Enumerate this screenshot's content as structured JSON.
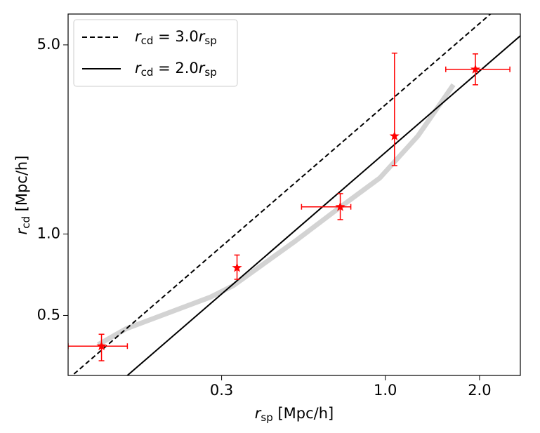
{
  "chart_data": {
    "type": "scatter",
    "xlabel": "rsp [Mpc/h]",
    "ylabel": "rcd [Mpc/h]",
    "xscale": "log",
    "yscale": "log",
    "xlim": [
      0.097,
      2.7
    ],
    "ylim": [
      0.3,
      6.5
    ],
    "xticks": [
      0.3,
      {
        "value": 1,
        "label": "1.0"
      },
      {
        "value": 2,
        "label": "2.0"
      }
    ],
    "yticks": [
      0.5,
      {
        "value": 1,
        "label": "1.0"
      },
      {
        "value": 5,
        "label": "5.0"
      }
    ],
    "legend": "upper left",
    "series": [
      {
        "name": "rcd = 3.0rsp",
        "factor": 3.0,
        "style": "dashed",
        "color": "#000000"
      },
      {
        "name": "rcd = 2.0rsp",
        "factor": 2.0,
        "style": "solid",
        "color": "#000000"
      }
    ],
    "points": {
      "color": "#ff0000",
      "x": [
        0.124,
        0.336,
        0.718,
        1.07,
        1.94
      ],
      "y": [
        0.385,
        0.75,
        1.26,
        2.3,
        4.06
      ],
      "x_lower": [
        0.097,
        0.336,
        0.54,
        1.07,
        1.56
      ],
      "x_upper": [
        0.15,
        0.336,
        0.776,
        1.07,
        2.5
      ],
      "y_lower": [
        0.34,
        0.68,
        1.13,
        1.79,
        3.56
      ],
      "y_upper": [
        0.426,
        0.836,
        1.41,
        4.66,
        4.63
      ]
    },
    "curve": {
      "color": "#d3d3d3",
      "x": [
        0.121,
        0.149,
        0.277,
        0.328,
        0.515,
        0.7,
        0.96,
        1.27,
        1.65
      ],
      "y": [
        0.39,
        0.447,
        0.585,
        0.646,
        0.94,
        1.23,
        1.61,
        2.3,
        3.56
      ]
    }
  }
}
